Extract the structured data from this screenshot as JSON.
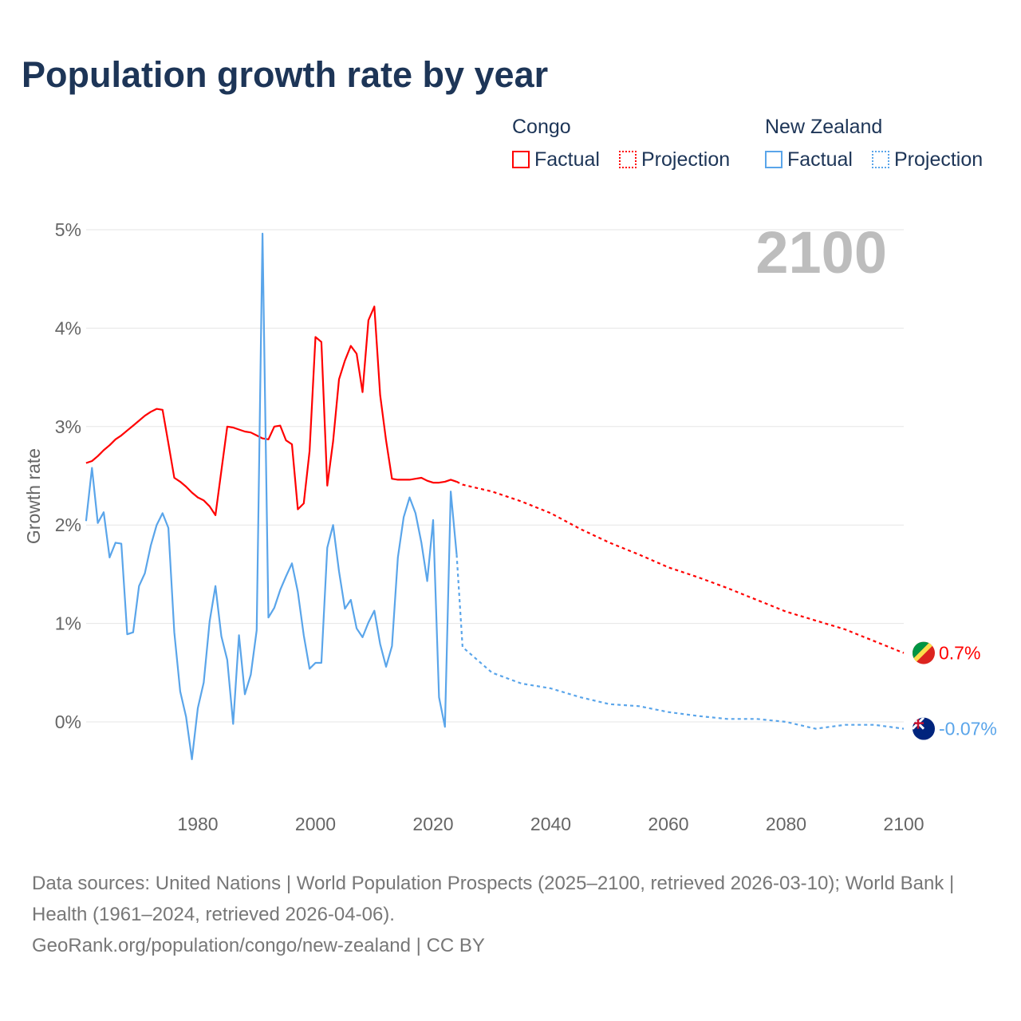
{
  "chart_data": {
    "type": "line",
    "title": "Population growth rate by year",
    "ylabel": "Growth rate",
    "xlabel": "",
    "xlim": [
      1961,
      2100
    ],
    "ylim": [
      -0.8,
      5
    ],
    "yticks": [
      0,
      1,
      2,
      3,
      4,
      5
    ],
    "ytick_labels": [
      "0%",
      "1%",
      "2%",
      "3%",
      "4%",
      "5%"
    ],
    "xticks": [
      1980,
      2000,
      2020,
      2040,
      2060,
      2080,
      2100
    ],
    "xtick_labels": [
      "1980",
      "2000",
      "2020",
      "2040",
      "2060",
      "2080",
      "2100"
    ],
    "year_overlay": "2100",
    "legend_position": "top-right",
    "series": [
      {
        "name": "Congo",
        "kind": "Factual",
        "color": "#ff0000",
        "x_start": 1961,
        "values": [
          2.63,
          2.65,
          2.7,
          2.76,
          2.81,
          2.87,
          2.91,
          2.96,
          3.01,
          3.06,
          3.11,
          3.15,
          3.18,
          3.17,
          2.83,
          2.48,
          2.44,
          2.39,
          2.33,
          2.28,
          2.25,
          2.19,
          2.1,
          2.55,
          3.0,
          2.99,
          2.97,
          2.95,
          2.94,
          2.91,
          2.88,
          2.87,
          3.0,
          3.01,
          2.86,
          2.82,
          2.16,
          2.22,
          2.75,
          3.91,
          3.86,
          2.4,
          2.85,
          3.48,
          3.67,
          3.82,
          3.74,
          3.35,
          4.08,
          4.22,
          3.32,
          2.86,
          2.47,
          2.46,
          2.46,
          2.46,
          2.47,
          2.48,
          2.45,
          2.43,
          2.43,
          2.44,
          2.46,
          2.44
        ]
      },
      {
        "name": "Congo",
        "kind": "Projection",
        "color": "#ff0000",
        "x": [
          2024,
          2025,
          2030,
          2035,
          2040,
          2045,
          2050,
          2055,
          2060,
          2065,
          2070,
          2075,
          2080,
          2085,
          2090,
          2095,
          2100
        ],
        "values": [
          2.44,
          2.41,
          2.34,
          2.24,
          2.12,
          1.96,
          1.82,
          1.7,
          1.57,
          1.47,
          1.36,
          1.24,
          1.12,
          1.03,
          0.94,
          0.82,
          0.7
        ]
      },
      {
        "name": "New Zealand",
        "kind": "Factual",
        "color": "#5aa5ea",
        "x_start": 1961,
        "values": [
          2.04,
          2.58,
          2.02,
          2.13,
          1.67,
          1.82,
          1.81,
          0.89,
          0.91,
          1.38,
          1.51,
          1.79,
          2.0,
          2.12,
          1.97,
          0.91,
          0.31,
          0.05,
          -0.38,
          0.14,
          0.4,
          1.02,
          1.38,
          0.87,
          0.63,
          -0.02,
          0.88,
          0.28,
          0.48,
          0.93,
          4.96,
          1.06,
          1.16,
          1.34,
          1.48,
          1.61,
          1.32,
          0.88,
          0.54,
          0.6,
          0.6,
          1.77,
          2.0,
          1.53,
          1.15,
          1.24,
          0.95,
          0.86,
          1.01,
          1.13,
          0.79,
          0.56,
          0.77,
          1.67,
          2.08,
          2.28,
          2.12,
          1.82,
          1.43,
          2.05,
          0.25,
          -0.05,
          2.34,
          1.7
        ]
      },
      {
        "name": "New Zealand",
        "kind": "Projection",
        "color": "#5aa5ea",
        "x": [
          2024,
          2025,
          2030,
          2035,
          2040,
          2045,
          2050,
          2055,
          2060,
          2065,
          2070,
          2075,
          2080,
          2085,
          2090,
          2095,
          2100
        ],
        "values": [
          1.7,
          0.76,
          0.5,
          0.39,
          0.34,
          0.25,
          0.18,
          0.16,
          0.1,
          0.06,
          0.03,
          0.03,
          0.0,
          -0.07,
          -0.03,
          -0.03,
          -0.07
        ]
      }
    ],
    "end_labels": [
      "0.7%",
      "-0.07%"
    ]
  },
  "legend": {
    "congo": "Congo",
    "nz": "New Zealand",
    "factual": "Factual",
    "projection": "Projection"
  },
  "footer": {
    "line1": "Data sources: United Nations | World Population Prospects (2025–2100, retrieved 2026-03-10); World Bank | Health (1961–2024, retrieved 2026-04-06).",
    "line2": "GeoRank.org/population/congo/new-zealand | CC BY"
  }
}
